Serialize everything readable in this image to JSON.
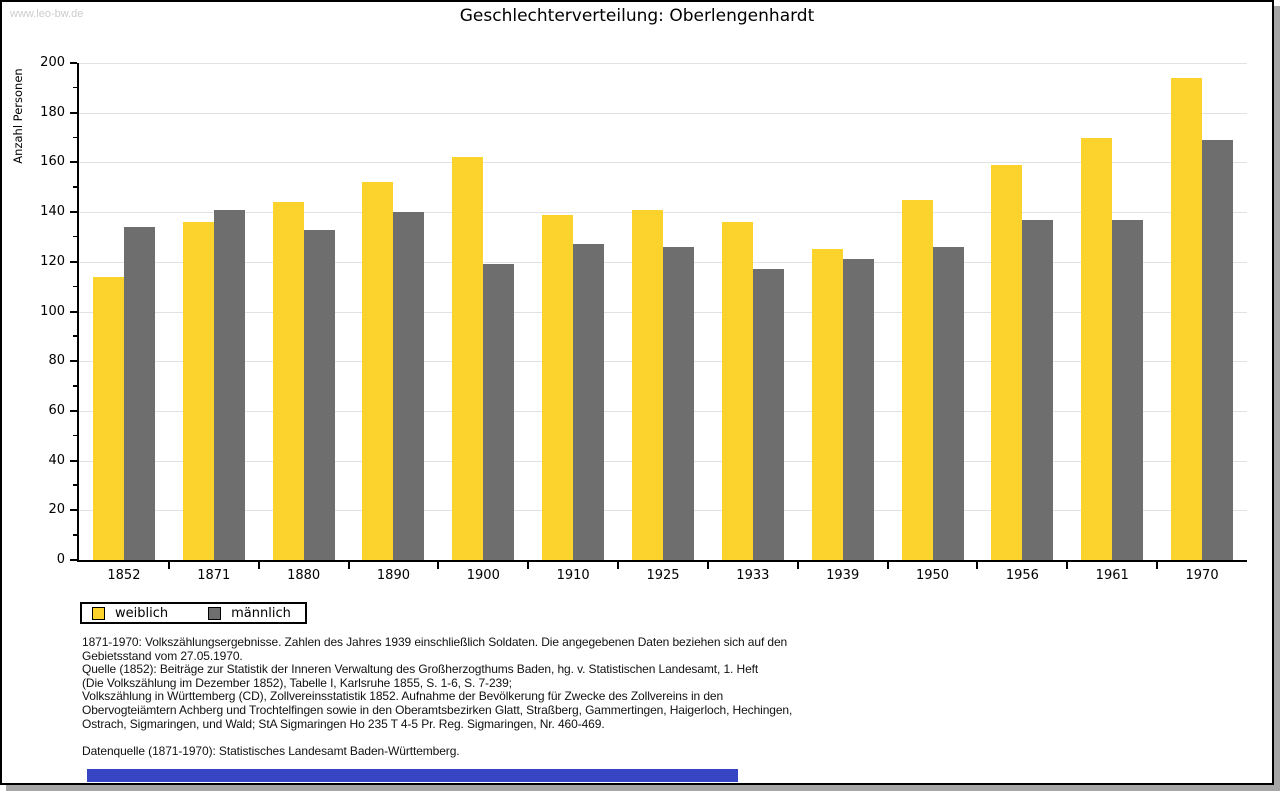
{
  "watermark": "www.leo-bw.de",
  "chart_data": {
    "type": "bar",
    "title": "Geschlechterverteilung: Oberlengenhardt",
    "xlabel": "",
    "ylabel": "Anzahl Personen",
    "categories": [
      "1852",
      "1871",
      "1880",
      "1890",
      "1900",
      "1910",
      "1925",
      "1933",
      "1939",
      "1950",
      "1956",
      "1961",
      "1970"
    ],
    "series": [
      {
        "name": "weiblich",
        "color": "#FCD32D",
        "values": [
          114,
          136,
          144,
          152,
          162,
          139,
          141,
          136,
          125,
          145,
          159,
          170,
          194
        ]
      },
      {
        "name": "männlich",
        "color": "#6E6E6E",
        "values": [
          134,
          141,
          133,
          140,
          119,
          127,
          126,
          117,
          121,
          126,
          137,
          137,
          169
        ]
      }
    ],
    "ylim": [
      0,
      200
    ],
    "ytick_major_step": 20,
    "ytick_minor_step": 10,
    "grid": true,
    "gridline_color": "#e2e2e2",
    "legend_position": "bottom-left"
  },
  "footnotes": {
    "lines": [
      "1871-1970: Volkszählungsergebnisse. Zahlen des Jahres 1939 einschließlich Soldaten. Die angegebenen Daten beziehen sich auf den",
      "Gebietsstand vom 27.05.1970.",
      "Quelle (1852): Beiträge zur Statistik der Inneren Verwaltung des Großherzogthums Baden, hg. v. Statistischen Landesamt, 1. Heft",
      "(Die Volkszählung im Dezember 1852), Tabelle I, Karlsruhe 1855, S. 1-6, S. 7-239;",
      "Volkszählung in Württemberg (CD), Zollvereinsstatistik 1852. Aufnahme der Bevölkerung für Zwecke des Zollvereins in den",
      "Obervogteiämtern Achberg und Trochtelfingen sowie in den Oberamtsbezirken Glatt, Straßberg, Gammertingen, Haigerloch, Hechingen,",
      "Ostrach, Sigmaringen, und Wald; StA Sigmaringen Ho 235 T 4-5 Pr. Reg. Sigmaringen, Nr. 460-469."
    ],
    "datasource": "Datenquelle (1871-1970): Statistisches Landesamt Baden-Württemberg."
  },
  "colors": {
    "frame_border": "#000000",
    "frame_shadow": "#a6a6a6",
    "watermark": "#cccccc",
    "bottom_bar": "#3745c5"
  }
}
